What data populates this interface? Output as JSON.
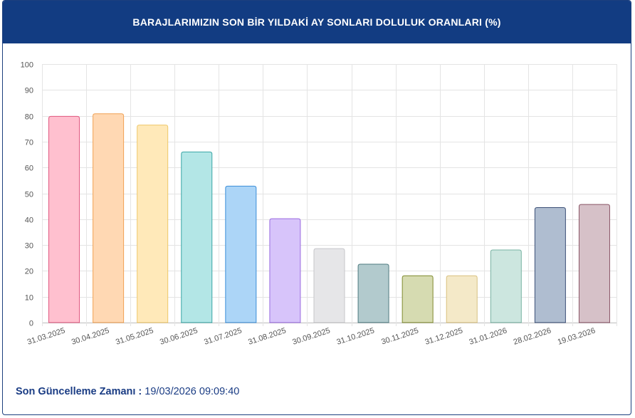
{
  "header": {
    "title": "BARAJLARIMIZIN SON BİR YILDAKİ AY SONLARI DOLULUK ORANLARI (%)"
  },
  "footer": {
    "label": "Son Güncelleme Zamanı :",
    "value": "19/03/2026 09:09:40"
  },
  "chart_data": {
    "type": "bar",
    "title": "BARAJLARIMIZIN SON BİR YILDAKİ AY SONLARI DOLULUK ORANLARI (%)",
    "xlabel": "",
    "ylabel": "",
    "ylim": [
      0,
      100
    ],
    "yticks": [
      0,
      10,
      20,
      30,
      40,
      50,
      60,
      70,
      80,
      90,
      100
    ],
    "grid": true,
    "categories": [
      "31.03.2025",
      "30.04.2025",
      "31.05.2025",
      "30.06.2025",
      "31.07.2025",
      "31.08.2025",
      "30.09.2025",
      "31.10.2025",
      "30.11.2025",
      "31.12.2025",
      "31.01.2026",
      "28.02.2026",
      "19.03.2026"
    ],
    "values": [
      79.8,
      80.8,
      76.4,
      66.0,
      52.8,
      40.2,
      28.6,
      22.6,
      18.1,
      18.1,
      28.1,
      44.5,
      45.7
    ],
    "colors": [
      {
        "fill": "#ffc0cf",
        "stroke": "#e0577f"
      },
      {
        "fill": "#ffd8b3",
        "stroke": "#f0a154"
      },
      {
        "fill": "#ffe9b9",
        "stroke": "#eec86a"
      },
      {
        "fill": "#b3e6e6",
        "stroke": "#3aa6a6"
      },
      {
        "fill": "#acd5f7",
        "stroke": "#3b8ed8"
      },
      {
        "fill": "#d7c4fa",
        "stroke": "#9a6be0"
      },
      {
        "fill": "#e6e6e8",
        "stroke": "#c6c6ca"
      },
      {
        "fill": "#b2cacd",
        "stroke": "#4f7b80"
      },
      {
        "fill": "#d6dbb1",
        "stroke": "#7f8a2e"
      },
      {
        "fill": "#f4e9c8",
        "stroke": "#d8c07f"
      },
      {
        "fill": "#cce6df",
        "stroke": "#79b3a3"
      },
      {
        "fill": "#afbdd0",
        "stroke": "#3b4f76"
      },
      {
        "fill": "#d6c1c8",
        "stroke": "#8a5566"
      }
    ]
  }
}
